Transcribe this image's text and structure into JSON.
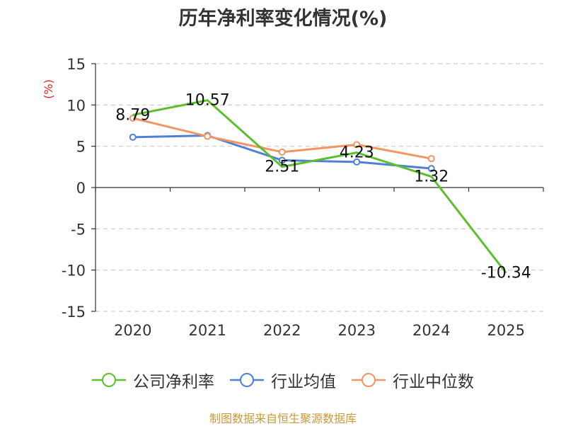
{
  "chart_data": {
    "type": "line",
    "title": "历年净利率变化情况(%)",
    "ylabel": "(%)",
    "xlabel": "",
    "categories": [
      "2020",
      "2021",
      "2022",
      "2023",
      "2024",
      "2025"
    ],
    "ylim": [
      -15,
      15
    ],
    "yticks": [
      15,
      10,
      5,
      0,
      -5,
      -10,
      -15
    ],
    "grid": true,
    "legend_position": "bottom",
    "series": [
      {
        "name": "公司净利率",
        "color": "#5cc02c",
        "values": [
          8.79,
          10.57,
          2.51,
          4.23,
          1.32,
          -10.34
        ],
        "labels": [
          "8.79",
          "10.57",
          "2.51",
          "4.23",
          "1.32",
          "-10.34"
        ]
      },
      {
        "name": "行业均值",
        "color": "#4f7fd9",
        "values": [
          6.1,
          6.3,
          3.3,
          3.1,
          2.3,
          null
        ]
      },
      {
        "name": "行业中位数",
        "color": "#f39563",
        "values": [
          8.4,
          6.2,
          4.3,
          5.2,
          3.5,
          null
        ]
      }
    ]
  },
  "footer": {
    "source": "制图数据来自恒生聚源数据库"
  }
}
